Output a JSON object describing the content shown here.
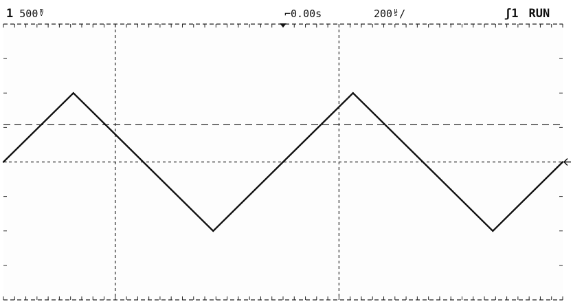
{
  "header": {
    "channel_number": "1",
    "volts_per_div_value": "500",
    "volts_unit_top": "m",
    "volts_unit_bottom": "V",
    "time_offset": "0.00s",
    "time_per_div_value": "200",
    "time_unit_top": "μ",
    "time_unit_bottom": "s",
    "time_unit_slash": "/",
    "trigger_edge_glyph": "ʃ",
    "trigger_source": "1",
    "run_status": "RUN"
  },
  "display": {
    "background_color": "#fdfdfd",
    "grid_color": "#222222",
    "trace_color": "#111111",
    "grid_divisions_x": 10,
    "grid_divisions_y": 8
  },
  "chart_data": {
    "type": "line",
    "title": "",
    "xlabel": "",
    "ylabel": "",
    "xlim": [
      -1000,
      1000
    ],
    "ylim": [
      -2000,
      2000
    ],
    "x_unit": "μs",
    "y_unit": "mV",
    "series": [
      {
        "x": [
          -1000,
          -750,
          -500,
          -250,
          0,
          250,
          500,
          750,
          1000
        ],
        "y": [
          0,
          1000,
          0,
          -1000,
          0,
          1000,
          0,
          -1000,
          0
        ]
      }
    ]
  }
}
